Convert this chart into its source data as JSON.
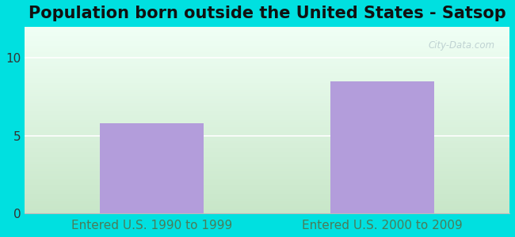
{
  "title": "Population born outside the United States - Satsop",
  "categories": [
    "Entered U.S. 1990 to 1999",
    "Entered U.S. 2000 to 2009"
  ],
  "values": [
    5.8,
    8.5
  ],
  "bar_color": "#b39ddb",
  "bar_width": 0.45,
  "ylim": [
    0,
    12
  ],
  "yticks": [
    0,
    5,
    10
  ],
  "xlabel_color": "#4a7c59",
  "title_fontsize": 15,
  "tick_fontsize": 11,
  "outer_bg": "#00e0e0",
  "watermark": "City-Data.com"
}
